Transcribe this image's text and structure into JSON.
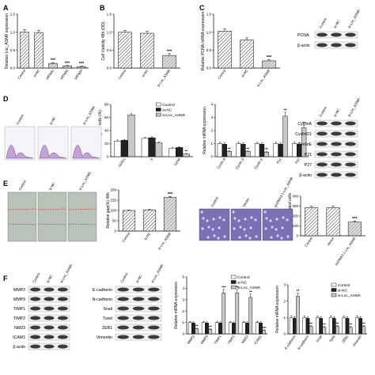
{
  "panel_labels": [
    "A",
    "B",
    "C",
    "D",
    "E",
    "F"
  ],
  "colors": {
    "control": "#ffffff",
    "si_nc": "#222222",
    "si_lnc": "#bbbbbb",
    "hatch_ctrl": "#333333",
    "hatch_grey": "#666666",
    "membrane": "#1a1a1a"
  },
  "icons": {
    "significance": "star-glyph",
    "microscopy": "photo-placeholder",
    "flow": "histogram-placeholder"
  },
  "chart_data": [
    {
      "id": "A",
      "type": "bar",
      "ylabel": "Relative Lnc_ASNR expression",
      "ylim": [
        0,
        1.5
      ],
      "yticks": [
        "0.0",
        "0.5",
        "1.0",
        "1.5"
      ],
      "categories": [
        "Control",
        "si-NC",
        "siRNA1",
        "siRNA2",
        "siRNA3"
      ],
      "values": [
        1.0,
        0.99,
        0.13,
        0.06,
        0.04
      ],
      "errors": [
        0.07,
        0.06,
        0.02,
        0.01,
        0.01
      ],
      "sig": [
        "",
        "",
        "***",
        "***",
        "***"
      ],
      "bar_styles": [
        "ctrl",
        "ctrl",
        "grey",
        "grey",
        "grey"
      ]
    },
    {
      "id": "B",
      "type": "bar",
      "ylabel": "Cell Viability 48h (OD)",
      "ylim": [
        0,
        1.5
      ],
      "yticks": [
        "0.0",
        "0.5",
        "1.0",
        "1.5"
      ],
      "categories": [
        "Control",
        "si-NC",
        "si-Lnc_ASNR"
      ],
      "values": [
        1.0,
        0.97,
        0.35
      ],
      "errors": [
        0.05,
        0.05,
        0.05
      ],
      "sig": [
        "",
        "",
        "***"
      ],
      "bar_styles": [
        "ctrl",
        "ctrl",
        "grey"
      ]
    },
    {
      "id": "C",
      "type": "bar",
      "ylabel": "Relative PCNA mRNA expression",
      "ylim": [
        0,
        1.5
      ],
      "yticks": [
        "0.0",
        "0.5",
        "1.0",
        "1.5"
      ],
      "categories": [
        "Control",
        "si-NC",
        "si-Lnc_ASNR"
      ],
      "values": [
        1.03,
        0.78,
        0.2
      ],
      "errors": [
        0.06,
        0.06,
        0.03
      ],
      "sig": [
        "",
        "",
        "***"
      ],
      "bar_styles": [
        "ctrl",
        "ctrl",
        "grey"
      ]
    },
    {
      "id": "D-cellcycle",
      "type": "bar",
      "ylabel": "Percentage of cells (%)",
      "ylim": [
        0,
        80
      ],
      "yticks": [
        "0",
        "20",
        "40",
        "60",
        "80"
      ],
      "categories": [
        "G0/G1",
        "S",
        "G2/M"
      ],
      "series": [
        {
          "name": "Control",
          "values": [
            24,
            28,
            13
          ],
          "errors": [
            1.5,
            1.5,
            1.5
          ]
        },
        {
          "name": "si-NC",
          "values": [
            25,
            29,
            14
          ],
          "errors": [
            1.5,
            1.5,
            1.5
          ]
        },
        {
          "name": "si-Lnc_ASNR",
          "values": [
            64,
            21,
            4
          ],
          "errors": [
            2,
            1.5,
            1
          ]
        }
      ],
      "sig": [
        [
          "",
          "",
          "**"
        ],
        [
          "",
          "",
          "**"
        ],
        [
          "",
          "",
          "**"
        ]
      ],
      "legend": "top-right"
    },
    {
      "id": "D-mrna",
      "type": "bar",
      "ylabel": "Relative mRNA expression",
      "ylim": [
        0,
        4
      ],
      "yticks": [
        "0",
        "1",
        "2",
        "3",
        "4"
      ],
      "categories": [
        "Cyclin A",
        "Cyclin D",
        "Cyclin E",
        "P21",
        "P27"
      ],
      "series": [
        {
          "name": "Control",
          "values": [
            1.0,
            1.0,
            1.0,
            1.0,
            1.0
          ],
          "errors": [
            0.1,
            0.1,
            0.1,
            0.1,
            0.1
          ]
        },
        {
          "name": "si-NC",
          "values": [
            0.95,
            0.95,
            0.95,
            0.95,
            0.95
          ],
          "errors": [
            0.1,
            0.1,
            0.1,
            0.1,
            0.1
          ]
        },
        {
          "name": "si-Lnc_ASNR",
          "values": [
            0.4,
            0.4,
            0.35,
            3.1,
            2.2
          ],
          "errors": [
            0.05,
            0.05,
            0.05,
            0.3,
            0.2
          ]
        }
      ],
      "sig": [
        "**",
        "**",
        "**",
        "**",
        "**"
      ]
    },
    {
      "id": "E-gap",
      "type": "bar",
      "ylabel": "Relative gap(%) 48h",
      "ylim": [
        0,
        200
      ],
      "yticks": [
        "0",
        "50",
        "100",
        "150",
        "200"
      ],
      "categories": [
        "Control",
        "si-NC",
        "si-Lnc_ASNR"
      ],
      "values": [
        100,
        103,
        163
      ],
      "errors": [
        2,
        2,
        5
      ],
      "sig": [
        "",
        "",
        "***"
      ],
      "bar_styles": [
        "ctrl",
        "ctrl",
        "grey"
      ]
    },
    {
      "id": "E-migration",
      "type": "bar",
      "ylabel": "Numbers of migrated cells",
      "ylim": [
        0,
        400
      ],
      "yticks": [
        "0",
        "100",
        "200",
        "300",
        "400"
      ],
      "categories": [
        "Control",
        "Vector",
        "pcDNA3.1-Lnc_ASNR"
      ],
      "values": [
        283,
        283,
        138
      ],
      "errors": [
        15,
        15,
        10
      ],
      "sig": [
        "",
        "",
        "***"
      ],
      "bar_styles": [
        "ctrl",
        "ctrl",
        "grey"
      ]
    },
    {
      "id": "F-metastasis",
      "type": "bar",
      "ylabel": "Relative mRNA expression",
      "ylim": [
        0,
        5
      ],
      "yticks": [
        "0",
        "1",
        "2",
        "3",
        "4",
        "5"
      ],
      "categories": [
        "MMP2",
        "MMP9",
        "TIMP1",
        "TIMP2",
        "NM23",
        "ICAM1"
      ],
      "series": [
        {
          "name": "Control",
          "values": [
            1.0,
            1.0,
            1.0,
            1.0,
            1.0,
            1.0
          ],
          "errors": [
            0.1,
            0.1,
            0.1,
            0.1,
            0.1,
            0.1
          ]
        },
        {
          "name": "si-NC",
          "values": [
            0.95,
            0.95,
            0.95,
            0.95,
            0.95,
            0.95
          ],
          "errors": [
            0.1,
            0.1,
            0.1,
            0.1,
            0.1,
            0.1
          ]
        },
        {
          "name": "si-Lnc_ASNR",
          "values": [
            0.45,
            0.4,
            3.6,
            3.6,
            3.2,
            0.3
          ],
          "errors": [
            0.05,
            0.05,
            0.3,
            0.3,
            0.3,
            0.05
          ]
        }
      ],
      "sig": [
        "**",
        "**",
        "***",
        "**",
        "**",
        "***"
      ],
      "legend": "top-right"
    },
    {
      "id": "F-emt",
      "type": "bar",
      "ylabel": "Relative mRNA expression",
      "ylim": [
        0,
        3
      ],
      "yticks": [
        "0",
        "1",
        "2",
        "3"
      ],
      "categories": [
        "E-cadherin",
        "N-cadherin",
        "Snail",
        "Twist",
        "ZEB1",
        "Vimentin"
      ],
      "series": [
        {
          "name": "Control",
          "values": [
            1.0,
            1.0,
            1.0,
            1.0,
            1.0,
            1.0
          ],
          "errors": [
            0.1,
            0.1,
            0.1,
            0.1,
            0.1,
            0.1
          ]
        },
        {
          "name": "si-NC",
          "values": [
            0.95,
            0.95,
            0.95,
            0.95,
            0.95,
            0.95
          ],
          "errors": [
            0.1,
            0.1,
            0.1,
            0.1,
            0.1,
            0.1
          ]
        },
        {
          "name": "si-Lnc_ASNR",
          "values": [
            2.3,
            0.45,
            0.4,
            0.45,
            0.4,
            0.45
          ],
          "errors": [
            0.2,
            0.05,
            0.05,
            0.05,
            0.05,
            0.05
          ]
        }
      ],
      "sig": [
        "**",
        "**",
        "**",
        "**",
        "**",
        "**"
      ],
      "legend": "top-right"
    }
  ],
  "blots": {
    "C": {
      "lanes": [
        "Control",
        "si-NC",
        "si-Lnc_ASNR"
      ],
      "bands": [
        "PCNA",
        "β-actin"
      ]
    },
    "D": {
      "lanes": [
        "Control",
        "si-NC",
        "si-Lnc_ASNR"
      ],
      "bands": [
        "CyclinA",
        "CyclinD1",
        "CyclinE",
        "P21",
        "P27",
        "β-actin"
      ]
    },
    "F1": {
      "lanes": [
        "Control",
        "si-NC",
        "si-Lnc_ASNR"
      ],
      "bands": [
        "MMP2",
        "MMP9",
        "TIMP1",
        "TIMP2",
        "NM23",
        "ICAM1",
        "β-actin"
      ]
    },
    "F2": {
      "lanes": [
        "Control",
        "si-NC",
        "si-Lnc_ASNR"
      ],
      "bands": [
        "E-cadherin",
        "N-cadherin",
        "Snail",
        "Twist",
        "ZEB1",
        "Vimentin"
      ]
    }
  },
  "images": {
    "E_wound": [
      "Control",
      "si-NC",
      "si-Lnc_ASNR"
    ],
    "E_migration": [
      "Control",
      "Vector",
      "pcDNA3.1-Lnc_ASNR"
    ],
    "D_flow": [
      "Control",
      "si-NC",
      "si-Lnc_ASNR"
    ]
  }
}
